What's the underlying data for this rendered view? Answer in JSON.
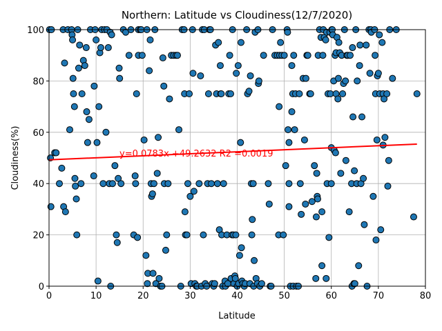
{
  "chart_data": {
    "type": "scatter",
    "title": "Northern: Latitude vs Cloudiness(12/7/2020)",
    "xlabel": "Latitude",
    "ylabel": "Cloudiness(%)",
    "xlim": [
      0,
      80
    ],
    "ylim": [
      0,
      100
    ],
    "xticks": [
      "0",
      "10",
      "20",
      "30",
      "40",
      "50",
      "60",
      "70",
      "80"
    ],
    "yticks": [
      "0",
      "20",
      "40",
      "60",
      "80",
      "100"
    ],
    "grid": true,
    "annotation": "y=0.0783x +49.2632     R2 =0.0019",
    "regression": {
      "slope": 0.0783,
      "intercept": 49.2632,
      "x_range": [
        0,
        78.2
      ],
      "color": "#ff0000"
    },
    "marker_color": "#1f77b4",
    "points": [
      [
        0.1,
        100
      ],
      [
        0.3,
        50
      ],
      [
        0.4,
        31
      ],
      [
        0.5,
        100
      ],
      [
        1.2,
        52
      ],
      [
        1.5,
        52
      ],
      [
        2.2,
        40
      ],
      [
        2.7,
        46
      ],
      [
        3,
        100
      ],
      [
        3.1,
        31
      ],
      [
        3.3,
        87
      ],
      [
        3.5,
        29
      ],
      [
        4,
        100
      ],
      [
        4.4,
        61
      ],
      [
        4.8,
        100
      ],
      [
        4.9,
        98
      ],
      [
        5,
        96
      ],
      [
        5.1,
        81
      ],
      [
        5.2,
        75
      ],
      [
        5.4,
        70
      ],
      [
        5.5,
        42
      ],
      [
        5.6,
        39
      ],
      [
        5.8,
        34
      ],
      [
        5.9,
        20
      ],
      [
        6.1,
        100
      ],
      [
        6.3,
        85
      ],
      [
        6.5,
        94
      ],
      [
        6.8,
        40
      ],
      [
        7,
        75
      ],
      [
        7.3,
        88
      ],
      [
        7.6,
        86
      ],
      [
        7.9,
        93
      ],
      [
        8,
        68
      ],
      [
        8.2,
        56
      ],
      [
        8.5,
        65
      ],
      [
        8.8,
        100
      ],
      [
        9.5,
        43
      ],
      [
        9.6,
        78
      ],
      [
        9.8,
        100
      ],
      [
        10,
        96
      ],
      [
        10.2,
        56
      ],
      [
        10.4,
        2
      ],
      [
        10.6,
        70
      ],
      [
        10.8,
        91
      ],
      [
        11,
        93
      ],
      [
        11.2,
        100
      ],
      [
        11.5,
        40
      ],
      [
        11.8,
        100
      ],
      [
        12.1,
        60
      ],
      [
        12.3,
        100
      ],
      [
        12.6,
        93
      ],
      [
        12.8,
        40
      ],
      [
        13,
        99
      ],
      [
        13.1,
        0
      ],
      [
        13.3,
        98
      ],
      [
        13.5,
        40
      ],
      [
        14,
        47
      ],
      [
        14.3,
        20
      ],
      [
        14.5,
        17
      ],
      [
        14.7,
        42
      ],
      [
        14.9,
        85
      ],
      [
        15,
        81
      ],
      [
        15.3,
        40
      ],
      [
        15.8,
        100
      ],
      [
        16.3,
        99
      ],
      [
        17,
        90
      ],
      [
        17.4,
        100
      ],
      [
        18,
        20
      ],
      [
        18.3,
        43
      ],
      [
        18.4,
        40
      ],
      [
        18.6,
        75
      ],
      [
        18.8,
        19
      ],
      [
        19,
        90
      ],
      [
        19,
        100
      ],
      [
        19.4,
        100
      ],
      [
        19.6,
        100
      ],
      [
        19.8,
        90
      ],
      [
        20.2,
        57
      ],
      [
        20.6,
        12
      ],
      [
        20.8,
        100
      ],
      [
        20.9,
        1
      ],
      [
        21,
        5
      ],
      [
        21.3,
        84
      ],
      [
        21.5,
        96
      ],
      [
        21.7,
        40
      ],
      [
        21.8,
        35
      ],
      [
        22,
        36
      ],
      [
        22.1,
        5
      ],
      [
        22.3,
        40
      ],
      [
        22.5,
        100
      ],
      [
        22.7,
        1
      ],
      [
        23,
        44
      ],
      [
        23.2,
        58
      ],
      [
        23.4,
        3
      ],
      [
        23.7,
        0
      ],
      [
        24,
        0
      ],
      [
        24.2,
        89
      ],
      [
        24.4,
        78
      ],
      [
        24.5,
        40
      ],
      [
        24.8,
        14
      ],
      [
        25,
        20
      ],
      [
        25.3,
        40
      ],
      [
        25.6,
        73
      ],
      [
        26,
        90
      ],
      [
        26.5,
        90
      ],
      [
        27,
        90
      ],
      [
        27.3,
        90
      ],
      [
        27.6,
        61
      ],
      [
        28,
        0
      ],
      [
        28.3,
        100
      ],
      [
        28.7,
        100
      ],
      [
        28.8,
        75
      ],
      [
        28.9,
        29
      ],
      [
        29,
        20
      ],
      [
        29.3,
        20
      ],
      [
        29.5,
        40
      ],
      [
        29.8,
        75
      ],
      [
        30,
        35
      ],
      [
        30.2,
        1
      ],
      [
        30.5,
        100
      ],
      [
        30.6,
        83
      ],
      [
        30.8,
        37
      ],
      [
        31,
        1
      ],
      [
        31.3,
        0
      ],
      [
        31.5,
        0
      ],
      [
        31.9,
        40
      ],
      [
        32.2,
        82
      ],
      [
        32.4,
        0
      ],
      [
        32.6,
        100
      ],
      [
        32.8,
        20
      ],
      [
        33,
        100
      ],
      [
        33.2,
        1
      ],
      [
        33.5,
        0
      ],
      [
        33.7,
        40
      ],
      [
        33.9,
        75
      ],
      [
        34.1,
        100
      ],
      [
        34.3,
        100
      ],
      [
        34.5,
        40
      ],
      [
        34.7,
        1
      ],
      [
        35,
        0
      ],
      [
        35.2,
        1
      ],
      [
        35.4,
        94
      ],
      [
        35.6,
        75
      ],
      [
        35.8,
        40
      ],
      [
        36,
        95
      ],
      [
        36.2,
        22
      ],
      [
        36.4,
        86
      ],
      [
        36.5,
        75
      ],
      [
        36.6,
        75
      ],
      [
        36.7,
        20
      ],
      [
        36.9,
        0
      ],
      [
        37.1,
        40
      ],
      [
        37.4,
        2
      ],
      [
        37.5,
        0
      ],
      [
        37.8,
        20
      ],
      [
        38,
        1
      ],
      [
        38.2,
        75
      ],
      [
        38.4,
        90
      ],
      [
        38.6,
        75
      ],
      [
        38.7,
        3
      ],
      [
        38.9,
        20
      ],
      [
        39,
        100
      ],
      [
        39.2,
        20
      ],
      [
        39.3,
        1
      ],
      [
        39.5,
        4
      ],
      [
        39.6,
        3
      ],
      [
        39.7,
        20
      ],
      [
        39.8,
        83
      ],
      [
        40,
        0
      ],
      [
        40.2,
        86
      ],
      [
        40.3,
        1
      ],
      [
        40.5,
        12
      ],
      [
        40.7,
        56
      ],
      [
        40.8,
        95
      ],
      [
        40.9,
        15
      ],
      [
        41,
        2
      ],
      [
        41.2,
        1
      ],
      [
        41.5,
        0
      ],
      [
        41.7,
        1
      ],
      [
        42,
        100
      ],
      [
        42.2,
        75
      ],
      [
        42.5,
        76
      ],
      [
        42.7,
        1
      ],
      [
        42.8,
        82
      ],
      [
        43,
        40
      ],
      [
        43.1,
        20
      ],
      [
        43.2,
        26
      ],
      [
        43.4,
        40
      ],
      [
        43.5,
        0
      ],
      [
        43.6,
        10
      ],
      [
        43.8,
        99
      ],
      [
        44,
        3
      ],
      [
        44.3,
        1
      ],
      [
        44.4,
        100
      ],
      [
        44.5,
        79
      ],
      [
        44.6,
        80
      ],
      [
        44.8,
        0
      ],
      [
        45.2,
        1
      ],
      [
        45.6,
        90
      ],
      [
        46.6,
        40
      ],
      [
        46.8,
        32
      ],
      [
        47,
        0
      ],
      [
        47.2,
        0
      ],
      [
        47.5,
        100
      ],
      [
        48,
        90
      ],
      [
        48.5,
        90
      ],
      [
        48.8,
        20
      ],
      [
        48.9,
        70
      ],
      [
        49,
        90
      ],
      [
        49.2,
        95
      ],
      [
        49.5,
        90
      ],
      [
        49.8,
        20
      ],
      [
        50,
        90
      ],
      [
        50.3,
        47
      ],
      [
        50.6,
        100
      ],
      [
        50.7,
        99
      ],
      [
        50.8,
        61
      ],
      [
        51,
        56
      ],
      [
        51,
        31
      ],
      [
        51,
        40
      ],
      [
        51.3,
        0
      ],
      [
        51.6,
        68
      ],
      [
        51.6,
        86
      ],
      [
        51.8,
        75
      ],
      [
        51.9,
        0
      ],
      [
        52,
        90
      ],
      [
        52.2,
        61
      ],
      [
        52.4,
        75
      ],
      [
        52.6,
        0
      ],
      [
        53,
        0
      ],
      [
        53.2,
        75
      ],
      [
        53.4,
        40
      ],
      [
        53.6,
        28
      ],
      [
        54,
        81
      ],
      [
        54.3,
        57
      ],
      [
        54.5,
        32
      ],
      [
        54.6,
        81
      ],
      [
        54.8,
        90
      ],
      [
        55,
        90
      ],
      [
        55.4,
        75
      ],
      [
        55.6,
        75
      ],
      [
        55.9,
        33
      ],
      [
        56.4,
        47
      ],
      [
        56.7,
        3
      ],
      [
        56.8,
        27
      ],
      [
        56.9,
        44
      ],
      [
        57,
        35
      ],
      [
        57.1,
        34
      ],
      [
        57.2,
        90
      ],
      [
        57.5,
        100
      ],
      [
        57.8,
        97
      ],
      [
        58,
        8
      ],
      [
        58,
        29
      ],
      [
        58.2,
        90
      ],
      [
        58.3,
        100
      ],
      [
        58.5,
        97
      ],
      [
        58.8,
        96
      ],
      [
        58.9,
        3
      ],
      [
        59,
        99
      ],
      [
        59.1,
        40
      ],
      [
        59.3,
        75
      ],
      [
        59.5,
        19
      ],
      [
        59.7,
        99
      ],
      [
        59.8,
        75
      ],
      [
        60,
        40
      ],
      [
        60,
        54
      ],
      [
        60.1,
        100
      ],
      [
        60.2,
        100
      ],
      [
        60.3,
        98
      ],
      [
        60.5,
        80
      ],
      [
        60.6,
        53
      ],
      [
        60.8,
        90
      ],
      [
        60.9,
        52
      ],
      [
        61,
        75
      ],
      [
        61,
        91
      ],
      [
        61.2,
        97
      ],
      [
        61.4,
        73
      ],
      [
        61.5,
        81
      ],
      [
        61.6,
        95
      ],
      [
        61.8,
        91
      ],
      [
        62,
        44
      ],
      [
        62.2,
        90
      ],
      [
        62.4,
        75
      ],
      [
        62.6,
        79
      ],
      [
        62.8,
        100
      ],
      [
        63,
        80
      ],
      [
        63.1,
        49
      ],
      [
        63.3,
        90
      ],
      [
        63.5,
        90
      ],
      [
        63.8,
        29
      ],
      [
        64,
        90
      ],
      [
        64.3,
        40
      ],
      [
        64.4,
        0
      ],
      [
        64.5,
        93
      ],
      [
        64.6,
        66
      ],
      [
        64.8,
        1
      ],
      [
        64.9,
        45
      ],
      [
        65,
        1
      ],
      [
        65.2,
        100
      ],
      [
        65.4,
        40
      ],
      [
        65.5,
        80
      ],
      [
        65.8,
        8
      ],
      [
        66,
        86
      ],
      [
        66.1,
        94
      ],
      [
        66.3,
        40
      ],
      [
        66.5,
        66
      ],
      [
        66.8,
        42
      ],
      [
        67,
        24
      ],
      [
        67.4,
        94
      ],
      [
        67.6,
        0
      ],
      [
        68,
        100
      ],
      [
        68.2,
        83
      ],
      [
        68.4,
        100
      ],
      [
        68.5,
        99
      ],
      [
        68.9,
        35
      ],
      [
        69.2,
        100
      ],
      [
        69.3,
        90
      ],
      [
        69.4,
        75
      ],
      [
        69.5,
        18
      ],
      [
        69.7,
        57
      ],
      [
        69.8,
        82
      ],
      [
        70,
        83
      ],
      [
        70.2,
        98
      ],
      [
        70.3,
        75
      ],
      [
        70.5,
        22
      ],
      [
        70.8,
        95
      ],
      [
        71,
        55
      ],
      [
        71,
        75
      ],
      [
        71.2,
        73
      ],
      [
        71.4,
        58
      ],
      [
        71.8,
        75
      ],
      [
        72,
        39
      ],
      [
        72.2,
        49
      ],
      [
        72.4,
        100
      ],
      [
        73,
        81
      ],
      [
        73.8,
        100
      ],
      [
        77.5,
        27
      ],
      [
        78.2,
        75
      ]
    ]
  }
}
